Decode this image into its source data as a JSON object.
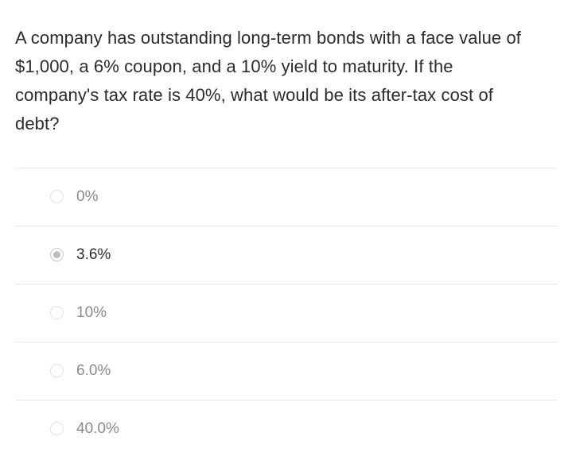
{
  "question": {
    "lines": [
      "A company has outstanding long-term bonds with a face value of",
      "$1,000, a 6% coupon, and a 10% yield to maturity. If the",
      "company's tax rate is 40%, what would be its after-tax cost of",
      "debt?"
    ]
  },
  "options": [
    {
      "label": "0%",
      "selected": false
    },
    {
      "label": "3.6%",
      "selected": true
    },
    {
      "label": "10%",
      "selected": false
    },
    {
      "label": "6.0%",
      "selected": false
    },
    {
      "label": "40.0%",
      "selected": false
    }
  ]
}
